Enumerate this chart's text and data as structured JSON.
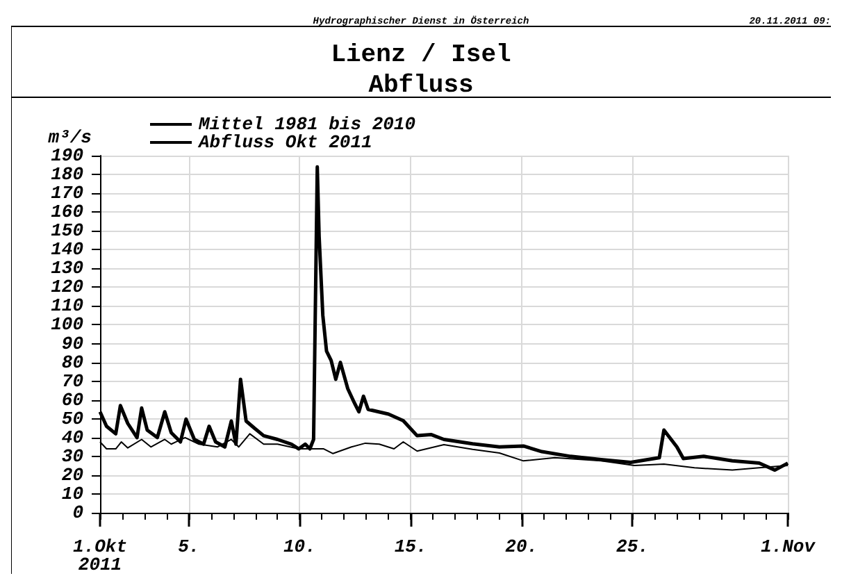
{
  "chart_data": {
    "type": "line",
    "title": "Lienz / Isel\nAbfluss",
    "ylabel": "m³/s",
    "annotations": [
      "Hydrographischer Dienst in Österreich",
      "20.11.2011 09:"
    ],
    "legend": "top left",
    "grid": true,
    "marker": "none",
    "line_style": "solid",
    "xlim": [
      "2011-10-01T00:00",
      "2011-11-01T00:00"
    ],
    "xticks": [
      {
        "value": "2011-10-01T00:00",
        "label": "1.Okt\n2011"
      },
      {
        "value": "2011-10-02T00:00",
        "label": null
      },
      {
        "value": "2011-10-03T00:00",
        "label": null
      },
      {
        "value": "2011-10-04T00:00",
        "label": null
      },
      {
        "value": "2011-10-05T00:00",
        "label": "5."
      },
      {
        "value": "2011-10-06T00:00",
        "label": null
      },
      {
        "value": "2011-10-07T00:00",
        "label": null
      },
      {
        "value": "2011-10-08T00:00",
        "label": null
      },
      {
        "value": "2011-10-09T00:00",
        "label": null
      },
      {
        "value": "2011-10-10T00:00",
        "label": "10."
      },
      {
        "value": "2011-10-11T00:00",
        "label": null
      },
      {
        "value": "2011-10-12T00:00",
        "label": null
      },
      {
        "value": "2011-10-13T00:00",
        "label": null
      },
      {
        "value": "2011-10-14T00:00",
        "label": null
      },
      {
        "value": "2011-10-15T00:00",
        "label": "15."
      },
      {
        "value": "2011-10-16T00:00",
        "label": null
      },
      {
        "value": "2011-10-17T00:00",
        "label": null
      },
      {
        "value": "2011-10-18T00:00",
        "label": null
      },
      {
        "value": "2011-10-19T00:00",
        "label": null
      },
      {
        "value": "2011-10-20T00:00",
        "label": "20."
      },
      {
        "value": "2011-10-21T00:00",
        "label": null
      },
      {
        "value": "2011-10-22T00:00",
        "label": null
      },
      {
        "value": "2011-10-23T00:00",
        "label": null
      },
      {
        "value": "2011-10-24T00:00",
        "label": null
      },
      {
        "value": "2011-10-25T00:00",
        "label": "25."
      },
      {
        "value": "2011-10-26T00:00",
        "label": null
      },
      {
        "value": "2011-10-27T00:00",
        "label": null
      },
      {
        "value": "2011-10-28T00:00",
        "label": null
      },
      {
        "value": "2011-10-29T00:00",
        "label": null
      },
      {
        "value": "2011-10-30T00:00",
        "label": null
      },
      {
        "value": "2011-10-31T00:00",
        "label": null
      },
      {
        "value": "2011-11-01T00:00",
        "label": "1.Nov"
      }
    ],
    "ylim": [
      0,
      190
    ],
    "yticks": [
      0,
      10,
      20,
      30,
      40,
      50,
      60,
      70,
      80,
      90,
      100,
      110,
      120,
      130,
      140,
      150,
      160,
      170,
      180,
      190
    ],
    "series": [
      {
        "name": "Mittel 1981 bis 2010",
        "color": "#000000",
        "x": [
          "2011-10-01T00:00",
          "2011-10-01T07:00",
          "2011-10-01T17:00",
          "2011-10-01T23:00",
          "2011-10-02T06:00",
          "2011-10-02T21:00",
          "2011-10-03T07:00",
          "2011-10-03T22:00",
          "2011-10-04T05:00",
          "2011-10-04T20:00",
          "2011-10-05T11:00",
          "2011-10-06T07:00",
          "2011-10-06T22:00",
          "2011-10-07T06:00",
          "2011-10-07T18:00",
          "2011-10-08T09:00",
          "2011-10-09T00:00",
          "2011-10-09T23:00",
          "2011-10-11T02:00",
          "2011-10-11T12:00",
          "2011-10-12T08:00",
          "2011-10-12T23:00",
          "2011-10-13T14:00",
          "2011-10-14T06:00",
          "2011-10-14T16:00",
          "2011-10-15T07:00",
          "2011-10-16T12:00",
          "2011-10-17T19:00",
          "2011-10-19T00:00",
          "2011-10-20T02:00",
          "2011-10-21T12:00",
          "2011-10-23T14:00",
          "2011-10-25T02:00",
          "2011-10-26T10:00",
          "2011-10-27T19:00",
          "2011-10-29T12:00",
          "2011-10-30T17:00",
          "2011-11-01T00:00"
        ],
        "values": [
          37.7,
          34,
          34,
          37.7,
          34.5,
          39,
          35,
          39,
          36.5,
          40,
          36.5,
          35,
          39,
          35,
          42,
          36.5,
          36.5,
          34,
          34,
          31.5,
          35,
          37,
          36.5,
          34,
          37.7,
          32.8,
          36.2,
          33.7,
          31.8,
          27.6,
          29.3,
          27.6,
          25.1,
          25.9,
          23.9,
          22.7,
          23.9,
          25.1
        ]
      },
      {
        "name": "Abfluss Okt 2011",
        "color": "#000000",
        "x": [
          "2011-10-01T00:00",
          "2011-10-01T07:00",
          "2011-10-01T17:00",
          "2011-10-01T22:00",
          "2011-10-02T06:00",
          "2011-10-02T16:00",
          "2011-10-02T21:00",
          "2011-10-03T03:00",
          "2011-10-03T14:00",
          "2011-10-03T22:00",
          "2011-10-04T05:00",
          "2011-10-04T15:00",
          "2011-10-04T21:00",
          "2011-10-05T06:00",
          "2011-10-05T16:00",
          "2011-10-05T22:00",
          "2011-10-06T05:00",
          "2011-10-06T15:00",
          "2011-10-06T22:00",
          "2011-10-07T03:00",
          "2011-10-07T08:00",
          "2011-10-07T14:00",
          "2011-10-07T23:00",
          "2011-10-08T09:00",
          "2011-10-09T00:00",
          "2011-10-09T15:00",
          "2011-10-09T23:00",
          "2011-10-10T06:00",
          "2011-10-10T11:00",
          "2011-10-10T15:00",
          "2011-10-10T19:00",
          "2011-10-10T21:00",
          "2011-10-11T01:00",
          "2011-10-11T05:00",
          "2011-10-11T10:00",
          "2011-10-11T15:00",
          "2011-10-11T20:00",
          "2011-10-12T04:00",
          "2011-10-12T11:00",
          "2011-10-12T16:00",
          "2011-10-12T21:00",
          "2011-10-13T02:00",
          "2011-10-14T00:00",
          "2011-10-14T16:00",
          "2011-10-15T07:00",
          "2011-10-15T22:00",
          "2011-10-16T12:00",
          "2011-10-17T19:00",
          "2011-10-19T00:00",
          "2011-10-20T02:00",
          "2011-10-20T22:00",
          "2011-10-22T05:00",
          "2011-10-23T14:00",
          "2011-10-24T22:00",
          "2011-10-26T05:00",
          "2011-10-26T10:00",
          "2011-10-27T00:00",
          "2011-10-27T07:00",
          "2011-10-28T05:00",
          "2011-10-29T12:00",
          "2011-10-30T17:00",
          "2011-10-31T10:00",
          "2011-11-01T00:00"
        ],
        "values": [
          53.7,
          46,
          42,
          57,
          47.5,
          40,
          55.7,
          44,
          40,
          53.7,
          42.6,
          37.7,
          49.8,
          39,
          36.5,
          46,
          37.7,
          35,
          48.8,
          36.5,
          71,
          48.8,
          45,
          41,
          39,
          36.5,
          34,
          36.5,
          34,
          39,
          184,
          147,
          105,
          86,
          81,
          71,
          80,
          66,
          58.6,
          53.7,
          62,
          55,
          52.5,
          49,
          41,
          41.6,
          39,
          36.7,
          35,
          35.5,
          32.5,
          30,
          28.3,
          26.8,
          29.3,
          44,
          35,
          28.8,
          30,
          27.6,
          26.4,
          22.7,
          26.4
        ]
      }
    ]
  }
}
